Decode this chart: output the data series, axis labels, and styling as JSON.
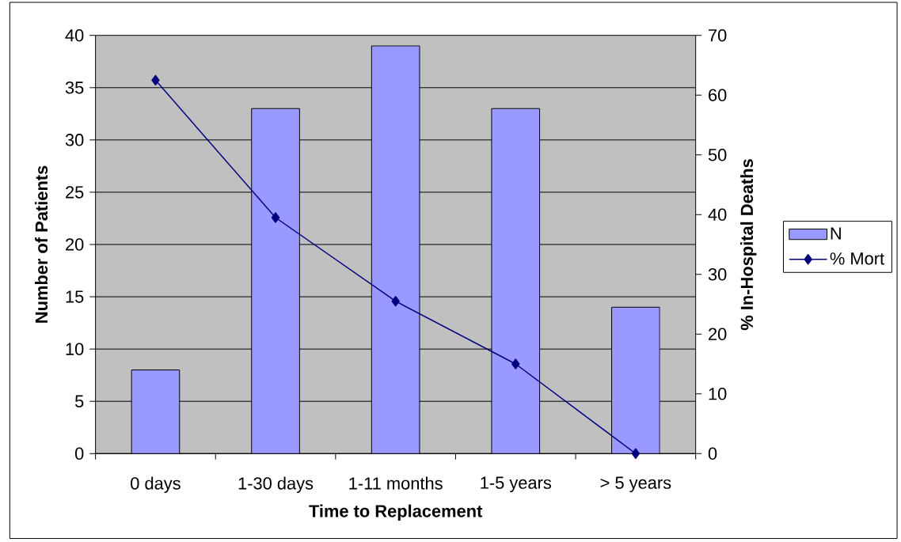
{
  "chart_data": {
    "type": "bar",
    "xlabel": "Time to Replacement",
    "ylabel": "Number of Patients",
    "y2label": "% In-Hospital Deaths",
    "categories": [
      "0 days",
      "1-30 days",
      "1-11 months",
      "1-5 years",
      "> 5 years"
    ],
    "series": [
      {
        "name": "N",
        "color": "#9999ff",
        "values": [
          8,
          33,
          39,
          33,
          14
        ]
      },
      {
        "name": "% Mort",
        "type": "line",
        "axis": "y2",
        "color": "#000080",
        "marker": "diamond",
        "values": [
          62.5,
          39.5,
          25.5,
          15,
          0
        ]
      }
    ],
    "ylim": [
      0,
      40
    ],
    "yticks": [
      0,
      5,
      10,
      15,
      20,
      25,
      30,
      35,
      40
    ],
    "y2lim": [
      0,
      70
    ],
    "y2ticks": [
      0,
      10,
      20,
      30,
      40,
      50,
      60,
      70
    ],
    "grid": "y",
    "legend": "right"
  }
}
